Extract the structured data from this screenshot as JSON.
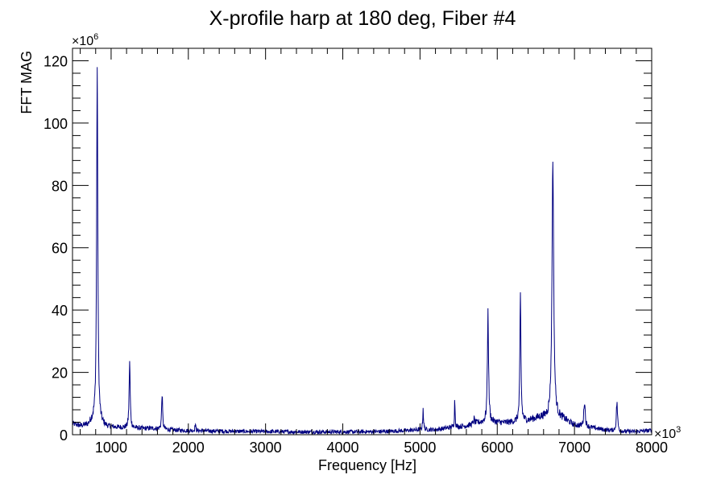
{
  "chart_data": {
    "type": "line",
    "title": "X-profile harp at 180 deg, Fiber #4",
    "xlabel": "Frequency [Hz]",
    "ylabel": "FFT MAG",
    "x_multiplier_label": "×10",
    "x_multiplier_exp": "3",
    "y_multiplier_label": "×10",
    "y_multiplier_exp": "6",
    "xlim": [
      500,
      8000
    ],
    "ylim": [
      0,
      124
    ],
    "x_ticks": [
      1000,
      2000,
      3000,
      4000,
      5000,
      6000,
      7000,
      8000
    ],
    "x_tick_labels": [
      "1000",
      "2000",
      "3000",
      "4000",
      "5000",
      "6000",
      "7000",
      "8000"
    ],
    "y_ticks": [
      0,
      20,
      40,
      60,
      80,
      100,
      120
    ],
    "y_tick_labels": [
      "0",
      "20",
      "40",
      "60",
      "80",
      "100",
      "120"
    ],
    "grid": false,
    "line_color": "#000080",
    "series": [
      {
        "baseline": [
          [
            500,
            3.5
          ],
          [
            600,
            2.8
          ],
          [
            700,
            3.0
          ],
          [
            760,
            4.5
          ],
          [
            950,
            2.5
          ],
          [
            1100,
            2.3
          ],
          [
            1400,
            2.0
          ],
          [
            1550,
            2.0
          ],
          [
            1800,
            1.5
          ],
          [
            2000,
            1.3
          ],
          [
            2500,
            1.1
          ],
          [
            3000,
            1.0
          ],
          [
            3500,
            0.9
          ],
          [
            4000,
            0.9
          ],
          [
            4500,
            1.0
          ],
          [
            4800,
            1.3
          ],
          [
            5000,
            1.6
          ],
          [
            5200,
            1.6
          ],
          [
            5400,
            2.3
          ],
          [
            5600,
            2.8
          ],
          [
            5750,
            3.8
          ],
          [
            5950,
            4.0
          ],
          [
            6100,
            3.8
          ],
          [
            6200,
            4.0
          ],
          [
            6400,
            4.5
          ],
          [
            6550,
            5.5
          ],
          [
            6850,
            5.0
          ],
          [
            7000,
            3.0
          ],
          [
            7200,
            2.3
          ],
          [
            7400,
            1.5
          ],
          [
            7600,
            1.0
          ],
          [
            7800,
            1.0
          ],
          [
            8000,
            1.4
          ]
        ],
        "peaks": [
          {
            "x": 820,
            "y": 118,
            "w": 9
          },
          {
            "x": 1240,
            "y": 23.5,
            "w": 8
          },
          {
            "x": 1660,
            "y": 13.5,
            "w": 7
          },
          {
            "x": 2090,
            "y": 3.5,
            "w": 6
          },
          {
            "x": 5040,
            "y": 8.5,
            "w": 6
          },
          {
            "x": 5450,
            "y": 11.5,
            "w": 5
          },
          {
            "x": 5700,
            "y": 5.0,
            "w": 8
          },
          {
            "x": 5880,
            "y": 39.5,
            "w": 9
          },
          {
            "x": 6300,
            "y": 45,
            "w": 8
          },
          {
            "x": 6720,
            "y": 88,
            "w": 13
          },
          {
            "x": 7130,
            "y": 11.0,
            "w": 10
          },
          {
            "x": 7550,
            "y": 10.5,
            "w": 9
          }
        ],
        "noise_amplitude": 1.0
      }
    ]
  }
}
